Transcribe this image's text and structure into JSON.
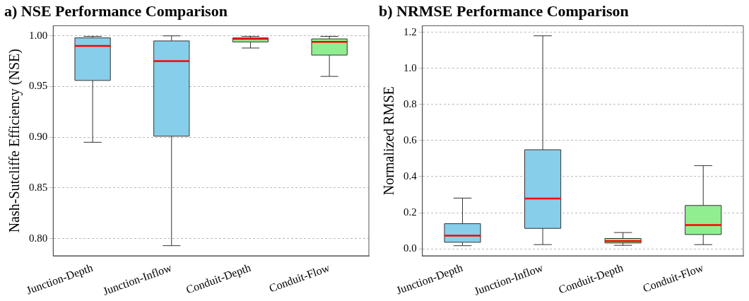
{
  "chart_data": [
    {
      "type": "box",
      "title": "a) NSE Performance Comparison",
      "ylabel": "Nash-Sutcliffe Efficiency (NSE)",
      "categories": [
        "Junction-Depth",
        "Junction-Inflow",
        "Conduit-Depth",
        "Conduit-Flow"
      ],
      "colors": [
        "#87ceeb",
        "#87ceeb",
        "#90ee90",
        "#90ee90"
      ],
      "boxes": [
        {
          "low": 0.895,
          "q1": 0.956,
          "median": 0.99,
          "q3": 0.998,
          "high": 0.9995
        },
        {
          "low": 0.793,
          "q1": 0.901,
          "median": 0.975,
          "q3": 0.995,
          "high": 1.0
        },
        {
          "low": 0.988,
          "q1": 0.994,
          "median": 0.997,
          "q3": 0.998,
          "high": 0.9995
        },
        {
          "low": 0.96,
          "q1": 0.981,
          "median": 0.994,
          "q3": 0.997,
          "high": 0.9995
        }
      ],
      "ylim": [
        0.783,
        1.01
      ],
      "yticks": [
        {
          "value": 0.8,
          "label": "0.80"
        },
        {
          "value": 0.85,
          "label": "0.85"
        },
        {
          "value": 0.9,
          "label": "0.90"
        },
        {
          "value": 0.95,
          "label": "0.95"
        },
        {
          "value": 1.0,
          "label": "1.00"
        }
      ],
      "grid": "y",
      "legend": false
    },
    {
      "type": "box",
      "title": "b) NRMSE Performance Comparison",
      "ylabel": "Normalized RMSE",
      "categories": [
        "Junction-Depth",
        "Junction-Inflow",
        "Conduit-Depth",
        "Conduit-Flow"
      ],
      "colors": [
        "#87ceeb",
        "#87ceeb",
        "#90ee90",
        "#90ee90"
      ],
      "boxes": [
        {
          "low": 0.017,
          "q1": 0.036,
          "median": 0.073,
          "q3": 0.139,
          "high": 0.281
        },
        {
          "low": 0.023,
          "q1": 0.113,
          "median": 0.278,
          "q3": 0.549,
          "high": 1.181
        },
        {
          "low": 0.019,
          "q1": 0.032,
          "median": 0.042,
          "q3": 0.057,
          "high": 0.09
        },
        {
          "low": 0.023,
          "q1": 0.079,
          "median": 0.131,
          "q3": 0.24,
          "high": 0.461
        }
      ],
      "ylim": [
        -0.039,
        1.237
      ],
      "yticks": [
        {
          "value": 0,
          "label": "0.0"
        },
        {
          "value": 0.2,
          "label": "0.2"
        },
        {
          "value": 0.4,
          "label": "0.4"
        },
        {
          "value": 0.6,
          "label": "0.6"
        },
        {
          "value": 0.8,
          "label": "0.8"
        },
        {
          "value": 1.0,
          "label": "1.0"
        },
        {
          "value": 1.2,
          "label": "1.2"
        }
      ],
      "grid": "y",
      "legend": false
    }
  ]
}
